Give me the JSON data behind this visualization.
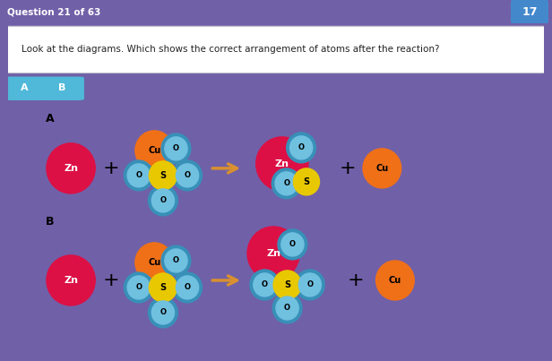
{
  "title": "Question 21 of 63",
  "question": "Look at the diagrams. Which shows the correct arrangement of atoms after the reaction?",
  "bg_header": "#7060a8",
  "bg_question": "#e8e8f0",
  "bg_main": "#e0e0e8",
  "tab_color": "#50b8d8",
  "badge_color": "#4488cc",
  "badge_num": "17",
  "colors": {
    "Zn": "#dc1045",
    "Cu": "#f07018",
    "S": "#e8c800",
    "O_fill": "#70c0e0",
    "O_ring": "#3890b8"
  },
  "arrow_color": "#d89030"
}
